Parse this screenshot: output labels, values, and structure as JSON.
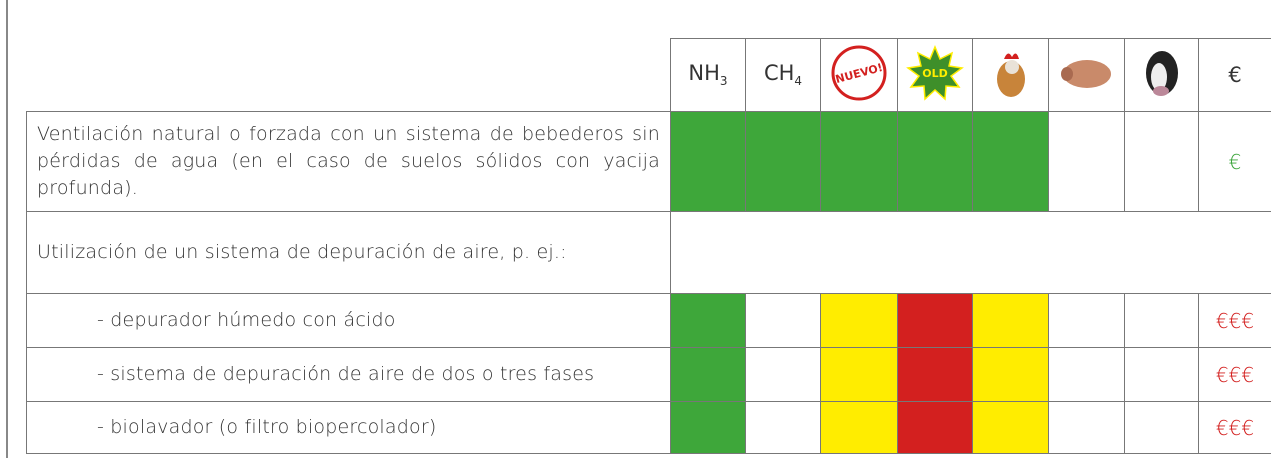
{
  "header": {
    "nh3": {
      "main": "NH",
      "sub": "3"
    },
    "ch4": {
      "main": "CH",
      "sub": "4"
    },
    "new_badge": "NUEVO!",
    "old_badge": "OLD",
    "cost": "€"
  },
  "rows": [
    {
      "text": "Ventilación natural o forzada con un sistema de bebederos sin pérdidas de agua (en el caso de suelos sólidos con yacija profunda).",
      "indent": false,
      "cells": [
        "#3ea73a",
        "#3ea73a",
        "#3ea73a",
        "#3ea73a",
        "#3ea73a",
        "#ffffff",
        "#ffffff"
      ],
      "cost": "€",
      "cost_color": "#3aa43a"
    },
    {
      "text": "Utilización de un sistema de depuración de aire, p. ej.:",
      "indent": false
    },
    {
      "text": "- depurador húmedo con ácido",
      "indent": true,
      "cells": [
        "#3ea73a",
        "#ffffff",
        "#ffed00",
        "#d3201f",
        "#ffed00",
        "#ffffff",
        "#ffffff"
      ],
      "cost": "€€€",
      "cost_color": "#d3201f"
    },
    {
      "text": "- sistema de depuración de aire de dos o tres fases",
      "indent": true,
      "cells": [
        "#3ea73a",
        "#ffffff",
        "#ffed00",
        "#d3201f",
        "#ffed00",
        "#ffffff",
        "#ffffff"
      ],
      "cost": "€€€",
      "cost_color": "#d3201f"
    },
    {
      "text": "- biolavador (o filtro biopercolador)",
      "indent": true,
      "cells": [
        "#3ea73a",
        "#ffffff",
        "#ffed00",
        "#d3201f",
        "#ffed00",
        "#ffffff",
        "#ffffff"
      ],
      "cost": "€€€",
      "cost_color": "#d3201f"
    }
  ]
}
